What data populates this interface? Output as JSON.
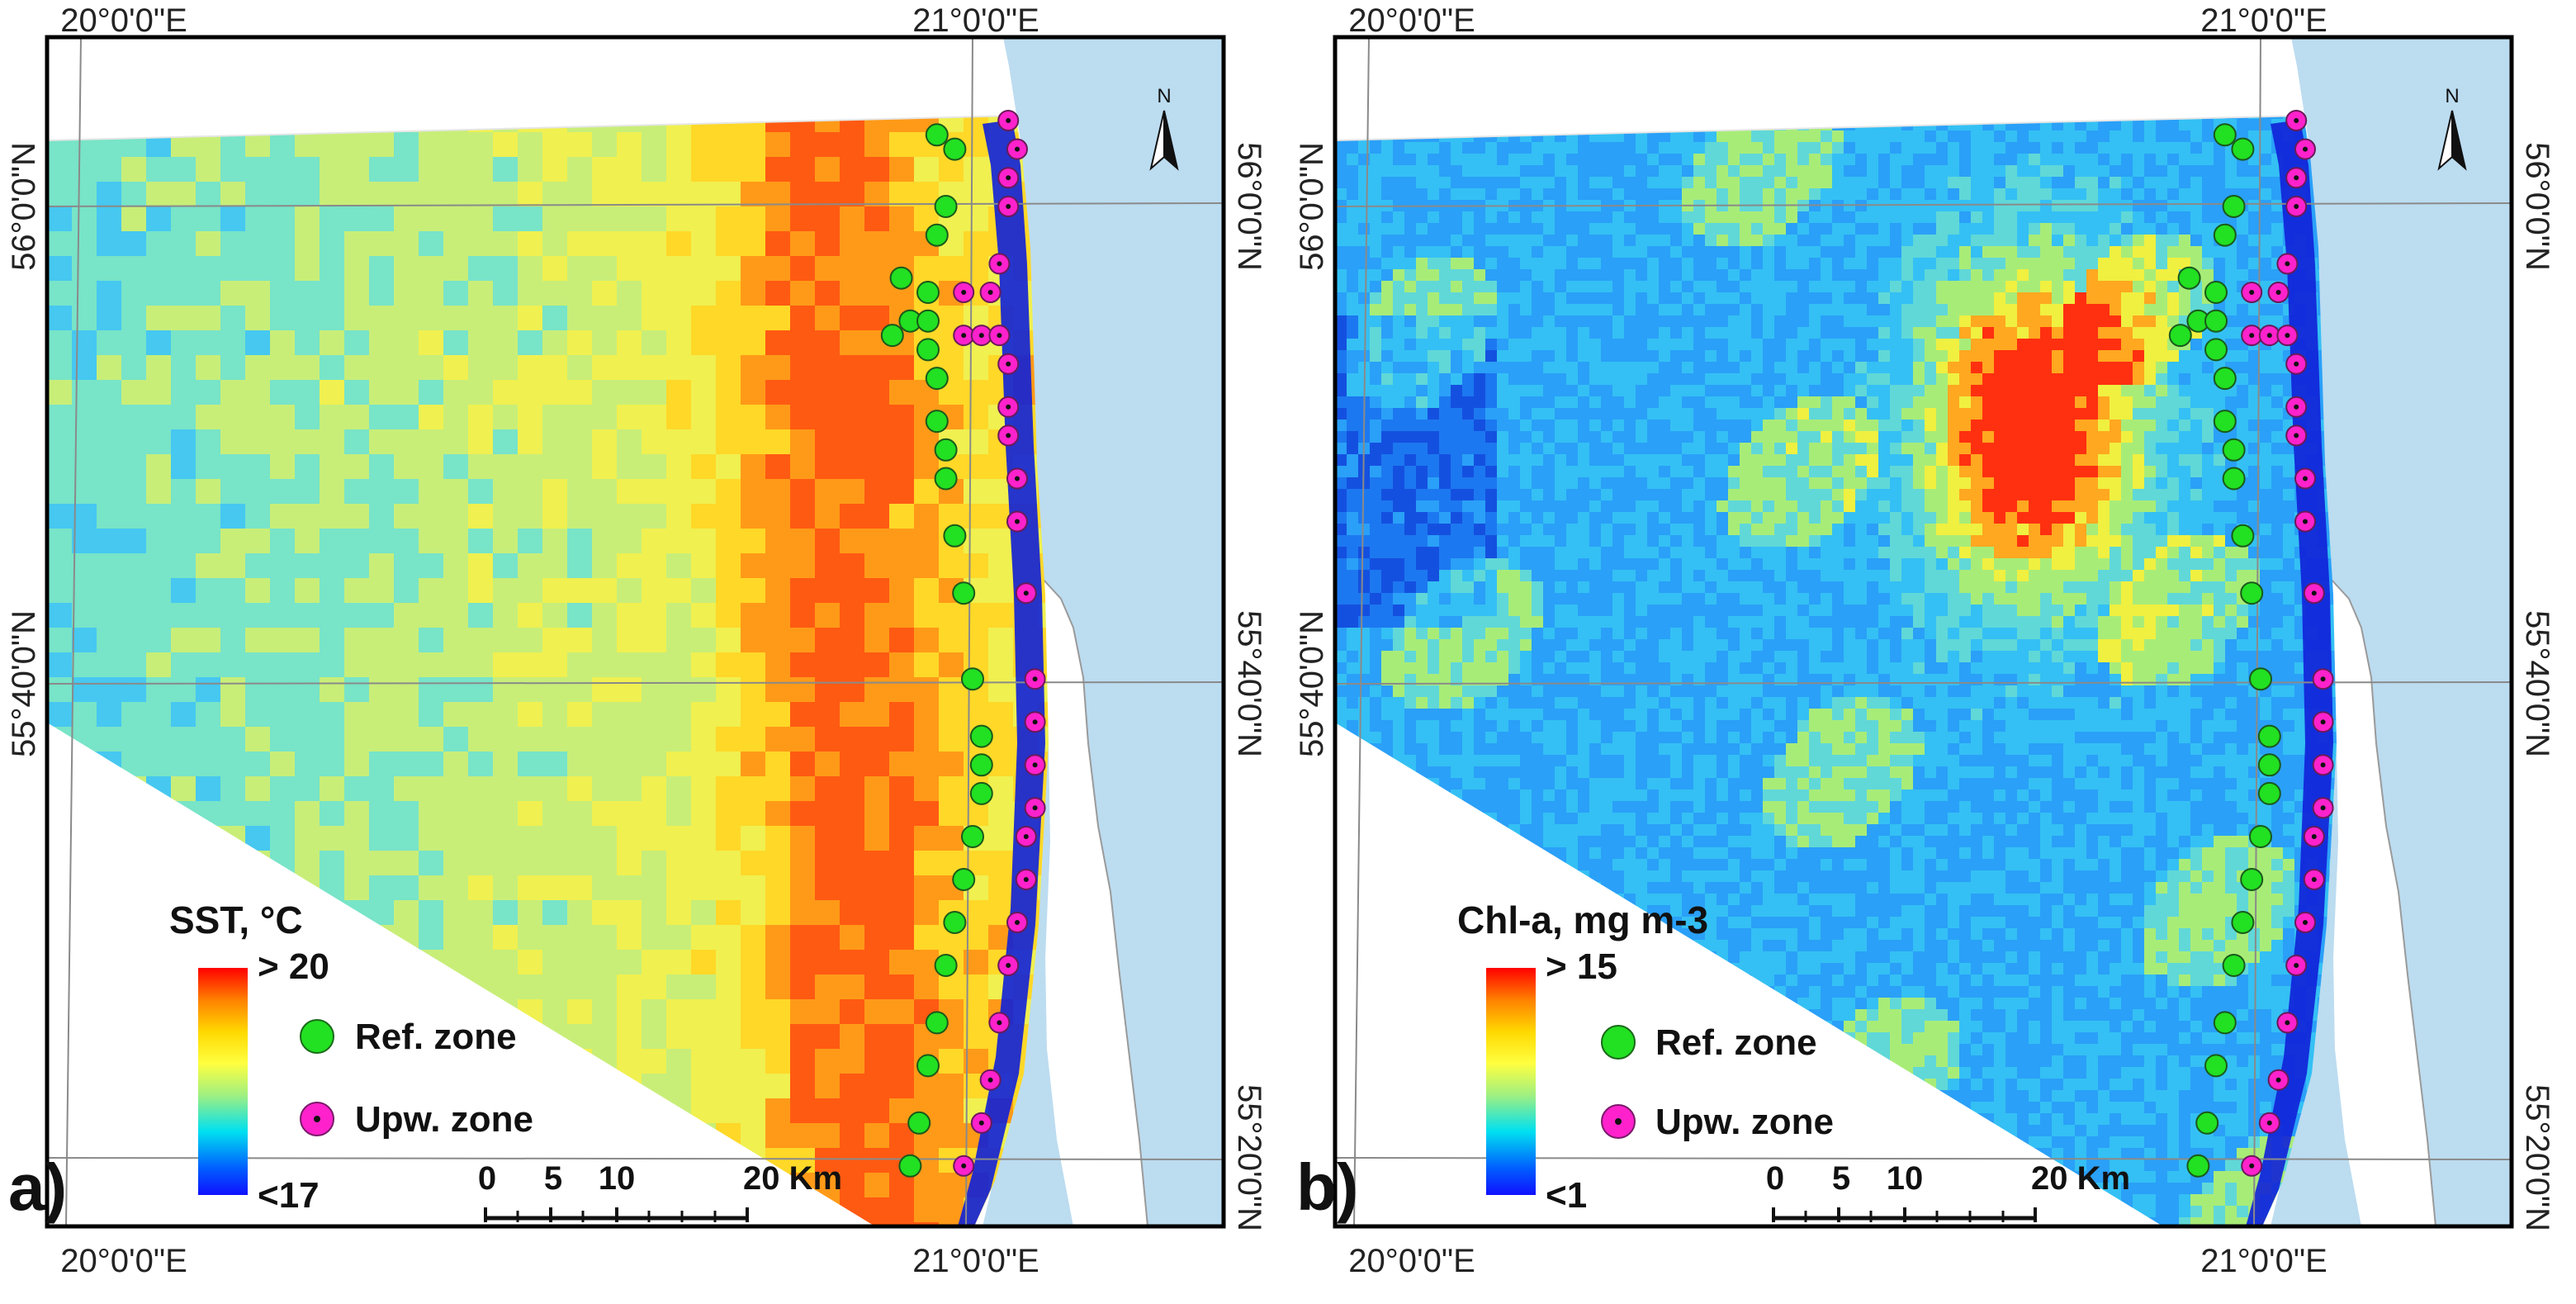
{
  "panels": [
    {
      "label": "a)",
      "variable": "SST",
      "legend": {
        "title": "SST, °C",
        "max_label": "> 20",
        "min_label": "<17",
        "ramp_colors": [
          "#ff0000",
          "#ff8000",
          "#ffd800",
          "#ffff40",
          "#a0f080",
          "#00e0f0",
          "#0060ff",
          "#1010ff"
        ]
      },
      "palette": [
        "#3ea0f0",
        "#46c8f0",
        "#78e4c8",
        "#c8ee78",
        "#f0f050",
        "#ffd828",
        "#ff9a18",
        "#ff5a12"
      ],
      "ref_zone_points": [
        [
          20.96,
          56.05
        ],
        [
          20.98,
          56.04
        ],
        [
          20.97,
          56.0
        ],
        [
          20.96,
          55.98
        ],
        [
          20.92,
          55.95
        ],
        [
          20.95,
          55.94
        ],
        [
          20.93,
          55.92
        ],
        [
          20.95,
          55.92
        ],
        [
          20.91,
          55.91
        ],
        [
          20.95,
          55.9
        ],
        [
          20.96,
          55.88
        ],
        [
          20.96,
          55.85
        ],
        [
          20.97,
          55.83
        ],
        [
          20.97,
          55.81
        ],
        [
          20.98,
          55.77
        ],
        [
          20.99,
          55.73
        ],
        [
          21.0,
          55.67
        ],
        [
          21.01,
          55.63
        ],
        [
          21.01,
          55.61
        ],
        [
          21.01,
          55.59
        ],
        [
          21.0,
          55.56
        ],
        [
          20.99,
          55.53
        ],
        [
          20.98,
          55.5
        ],
        [
          20.97,
          55.47
        ],
        [
          20.96,
          55.43
        ],
        [
          20.95,
          55.4
        ],
        [
          20.94,
          55.36
        ],
        [
          20.93,
          55.33
        ]
      ],
      "upw_zone_points": [
        [
          21.04,
          56.06
        ],
        [
          21.05,
          56.04
        ],
        [
          21.04,
          56.02
        ],
        [
          21.04,
          56.0
        ],
        [
          21.03,
          55.96
        ],
        [
          20.99,
          55.94
        ],
        [
          21.02,
          55.94
        ],
        [
          20.99,
          55.91
        ],
        [
          21.01,
          55.91
        ],
        [
          21.03,
          55.91
        ],
        [
          21.04,
          55.89
        ],
        [
          21.04,
          55.86
        ],
        [
          21.04,
          55.84
        ],
        [
          21.05,
          55.81
        ],
        [
          21.05,
          55.78
        ],
        [
          21.06,
          55.73
        ],
        [
          21.07,
          55.67
        ],
        [
          21.07,
          55.64
        ],
        [
          21.07,
          55.61
        ],
        [
          21.07,
          55.58
        ],
        [
          21.06,
          55.56
        ],
        [
          21.06,
          55.53
        ],
        [
          21.05,
          55.5
        ],
        [
          21.04,
          55.47
        ],
        [
          21.03,
          55.43
        ],
        [
          21.02,
          55.39
        ],
        [
          21.01,
          55.36
        ],
        [
          20.99,
          55.33
        ]
      ]
    },
    {
      "label": "b)",
      "variable": "Chl-a",
      "legend": {
        "title": "Chl-a, mg m-3",
        "max_label": "> 15",
        "min_label": "<1",
        "ramp_colors": [
          "#ff0000",
          "#ff8000",
          "#ffd800",
          "#ffff40",
          "#a0f080",
          "#00e0f0",
          "#0060ff",
          "#1010ff"
        ]
      },
      "palette": [
        "#1450e0",
        "#1c78f0",
        "#2aa0f8",
        "#34c0f4",
        "#60d8d8",
        "#a8ec78",
        "#f0f040",
        "#ffa820",
        "#ff3010"
      ],
      "ref_zone_points": [
        [
          20.96,
          56.05
        ],
        [
          20.98,
          56.04
        ],
        [
          20.97,
          56.0
        ],
        [
          20.96,
          55.98
        ],
        [
          20.92,
          55.95
        ],
        [
          20.95,
          55.94
        ],
        [
          20.93,
          55.92
        ],
        [
          20.95,
          55.92
        ],
        [
          20.91,
          55.91
        ],
        [
          20.95,
          55.9
        ],
        [
          20.96,
          55.88
        ],
        [
          20.96,
          55.85
        ],
        [
          20.97,
          55.83
        ],
        [
          20.97,
          55.81
        ],
        [
          20.98,
          55.77
        ],
        [
          20.99,
          55.73
        ],
        [
          21.0,
          55.67
        ],
        [
          21.01,
          55.63
        ],
        [
          21.01,
          55.61
        ],
        [
          21.01,
          55.59
        ],
        [
          21.0,
          55.56
        ],
        [
          20.99,
          55.53
        ],
        [
          20.98,
          55.5
        ],
        [
          20.97,
          55.47
        ],
        [
          20.96,
          55.43
        ],
        [
          20.95,
          55.4
        ],
        [
          20.94,
          55.36
        ],
        [
          20.93,
          55.33
        ]
      ],
      "upw_zone_points": [
        [
          21.04,
          56.06
        ],
        [
          21.05,
          56.04
        ],
        [
          21.04,
          56.02
        ],
        [
          21.04,
          56.0
        ],
        [
          21.03,
          55.96
        ],
        [
          20.99,
          55.94
        ],
        [
          21.02,
          55.94
        ],
        [
          20.99,
          55.91
        ],
        [
          21.01,
          55.91
        ],
        [
          21.03,
          55.91
        ],
        [
          21.04,
          55.89
        ],
        [
          21.04,
          55.86
        ],
        [
          21.04,
          55.84
        ],
        [
          21.05,
          55.81
        ],
        [
          21.05,
          55.78
        ],
        [
          21.06,
          55.73
        ],
        [
          21.07,
          55.67
        ],
        [
          21.07,
          55.64
        ],
        [
          21.07,
          55.61
        ],
        [
          21.07,
          55.58
        ],
        [
          21.06,
          55.56
        ],
        [
          21.06,
          55.53
        ],
        [
          21.05,
          55.5
        ],
        [
          21.04,
          55.47
        ],
        [
          21.03,
          55.43
        ],
        [
          21.02,
          55.39
        ],
        [
          21.01,
          55.36
        ],
        [
          20.99,
          55.33
        ]
      ]
    }
  ],
  "axes": {
    "lon_labels": [
      "20°0'0\"E",
      "21°0'0\"E"
    ],
    "lat_labels": [
      "56°0'0\"N",
      "55°40'0\"N",
      "55°20'0\"N"
    ],
    "lon_values": [
      20.0,
      21.0
    ],
    "lat_values": [
      56.0,
      55.6667,
      55.3333
    ]
  },
  "legend_common": {
    "ref_zone_label": "Ref. zone",
    "upw_zone_label": "Upw. zone",
    "ref_zone_color": "#22e022",
    "upw_zone_color": "#ff22cc"
  },
  "scale_bar": {
    "ticks": [
      "0",
      "5",
      "10",
      "20 Km"
    ],
    "tick_km": [
      0,
      5,
      10,
      20
    ]
  },
  "north_arrow": {
    "label": "N"
  },
  "colors": {
    "land": "#ffffff",
    "sea_outside": "#bcdcf0",
    "upwelling_band": "#1020d8",
    "frame": "#000000",
    "grid": "#8a8a8a"
  }
}
